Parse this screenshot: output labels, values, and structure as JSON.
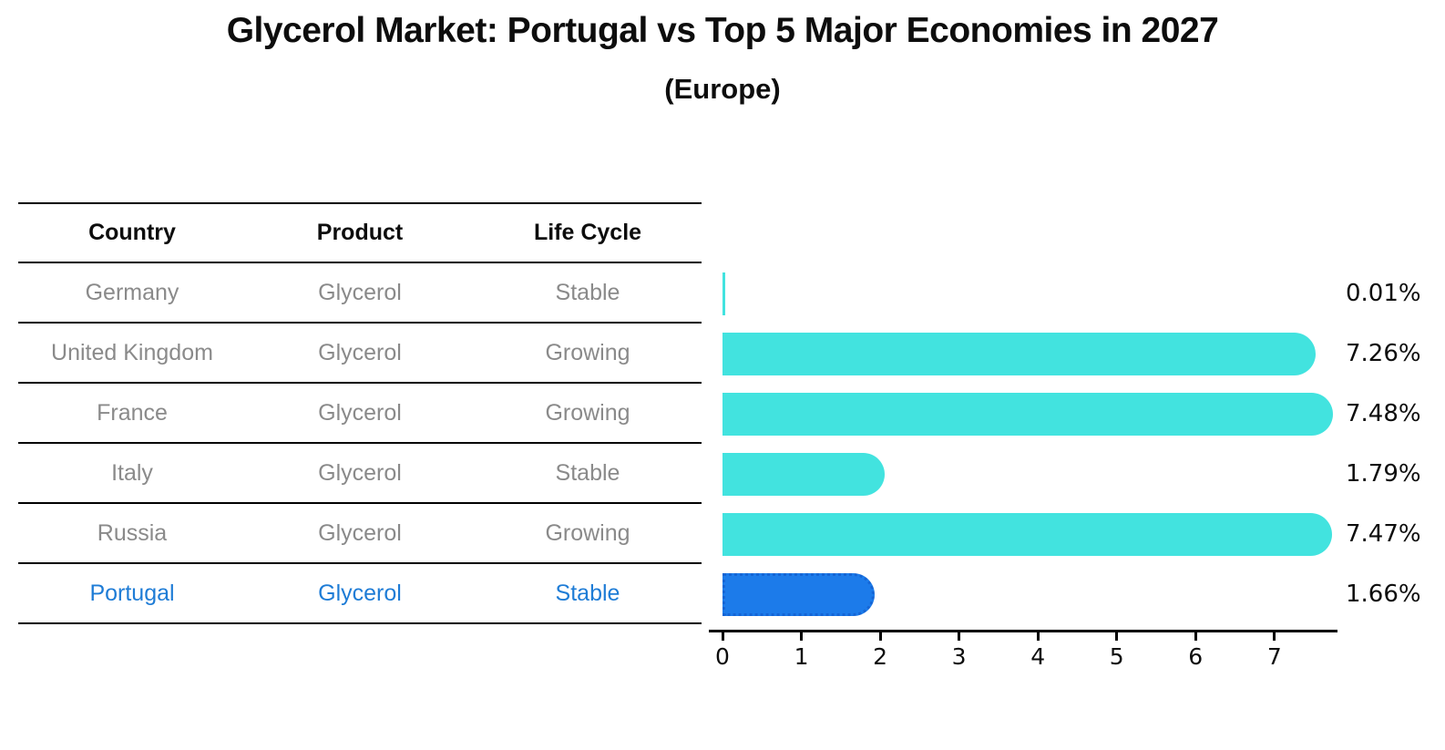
{
  "title": "Glycerol Market: Portugal vs Top 5 Major Economies in 2027",
  "subtitle": "(Europe)",
  "table": {
    "columns": [
      "Country",
      "Product",
      "Life Cycle"
    ],
    "rows": [
      {
        "country": "Germany",
        "product": "Glycerol",
        "life_cycle": "Stable",
        "highlighted": false
      },
      {
        "country": "United Kingdom",
        "product": "Glycerol",
        "life_cycle": "Growing",
        "highlighted": false
      },
      {
        "country": "France",
        "product": "Glycerol",
        "life_cycle": "Growing",
        "highlighted": false
      },
      {
        "country": "Italy",
        "product": "Glycerol",
        "life_cycle": "Stable",
        "highlighted": false
      },
      {
        "country": "Russia",
        "product": "Glycerol",
        "life_cycle": "Growing",
        "highlighted": false
      },
      {
        "country": "Portugal",
        "product": "Glycerol",
        "life_cycle": "Stable",
        "highlighted": true
      }
    ]
  },
  "chart_data": {
    "type": "bar",
    "orientation": "horizontal",
    "title": "Glycerol Market: Portugal vs Top 5 Major Economies in 2027",
    "subtitle": "(Europe)",
    "categories": [
      "Germany",
      "United Kingdom",
      "France",
      "Italy",
      "Russia",
      "Portugal"
    ],
    "values": [
      0.01,
      7.26,
      7.48,
      1.79,
      7.47,
      1.66
    ],
    "value_labels": [
      "0.01%",
      "7.26%",
      "7.48%",
      "1.79%",
      "7.47%",
      "1.66%"
    ],
    "x_ticks": [
      0,
      1,
      2,
      3,
      4,
      5,
      6,
      7
    ],
    "xlim": [
      0,
      7.8
    ],
    "grid": false,
    "legend": false,
    "bar_color": "#42e3df",
    "highlight_bar_color": "#1c7bea",
    "highlight_border_color": "#1565d5",
    "highlight_index": 5
  },
  "colors": {
    "accent_cyan": "#42e3df",
    "accent_blue": "#1c7bea",
    "table_text_gray": "#8a8a8a",
    "highlight_text_blue": "#1e7cd6",
    "line_black": "#000000"
  }
}
